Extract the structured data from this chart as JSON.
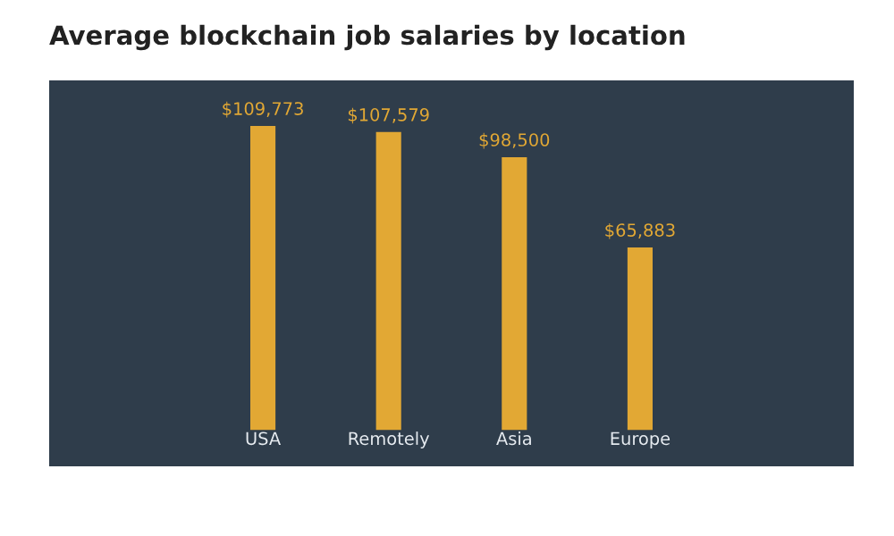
{
  "chart_data": {
    "type": "bar",
    "title": "Average blockchain job salaries by location",
    "categories": [
      "USA",
      "Remotely",
      "Asia",
      "Europe"
    ],
    "values": [
      109773,
      107579,
      98500,
      65883
    ],
    "value_labels": [
      "$109,773",
      "$107,579",
      "$98,500",
      "$65,883"
    ],
    "color": "#e2a834"
  }
}
